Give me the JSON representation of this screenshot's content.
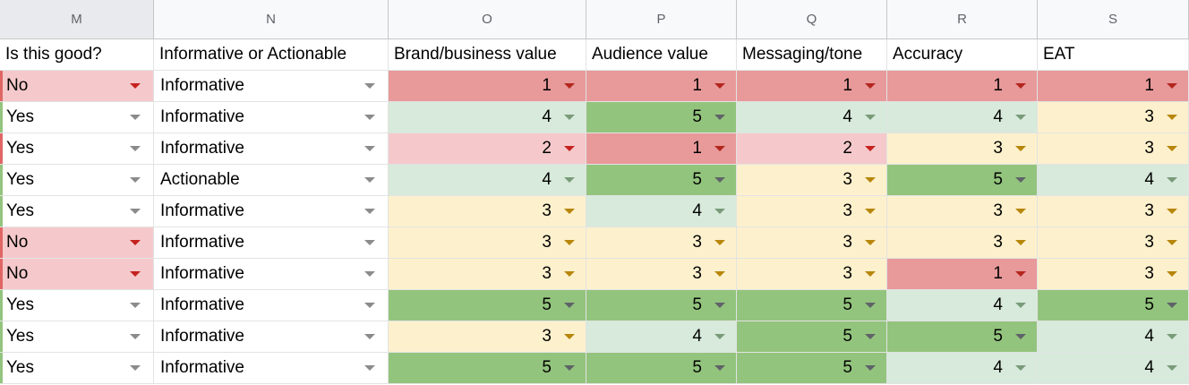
{
  "column_letters": [
    "M",
    "N",
    "O",
    "P",
    "Q",
    "R",
    "S"
  ],
  "headers": [
    "Is this good?",
    "Informative or Actionable",
    "Brand/business value",
    "Audience value",
    "Messaging/tone",
    "Accuracy",
    "EAT"
  ],
  "colors": {
    "score_1": "#e8999a",
    "score_2": "#f5c9cb",
    "score_3": "#fdf0cc",
    "score_4": "#d7eadb",
    "score_5": "#93c47d",
    "no_bg": "#f5c9cb",
    "yes_bg": "#ffffff"
  },
  "rows": [
    {
      "good": "No",
      "type": "Informative",
      "scores": [
        "1",
        "1",
        "1",
        "1",
        "1"
      ]
    },
    {
      "good": "Yes",
      "type": "Informative",
      "scores": [
        "4",
        "5",
        "4",
        "4",
        "3"
      ]
    },
    {
      "good": "Yes",
      "type": "Informative",
      "scores": [
        "2",
        "1",
        "2",
        "3",
        "3"
      ]
    },
    {
      "good": "Yes",
      "type": "Actionable",
      "scores": [
        "4",
        "5",
        "3",
        "5",
        "4"
      ]
    },
    {
      "good": "Yes",
      "type": "Informative",
      "scores": [
        "3",
        "4",
        "3",
        "3",
        "3"
      ]
    },
    {
      "good": "No",
      "type": "Informative",
      "scores": [
        "3",
        "3",
        "3",
        "3",
        "3"
      ]
    },
    {
      "good": "No",
      "type": "Informative",
      "scores": [
        "3",
        "3",
        "3",
        "1",
        "3"
      ]
    },
    {
      "good": "Yes",
      "type": "Informative",
      "scores": [
        "5",
        "5",
        "5",
        "4",
        "5"
      ]
    },
    {
      "good": "Yes",
      "type": "Informative",
      "scores": [
        "3",
        "4",
        "5",
        "5",
        "4"
      ]
    },
    {
      "good": "Yes",
      "type": "Informative",
      "scores": [
        "5",
        "5",
        "5",
        "4",
        "4"
      ]
    }
  ]
}
